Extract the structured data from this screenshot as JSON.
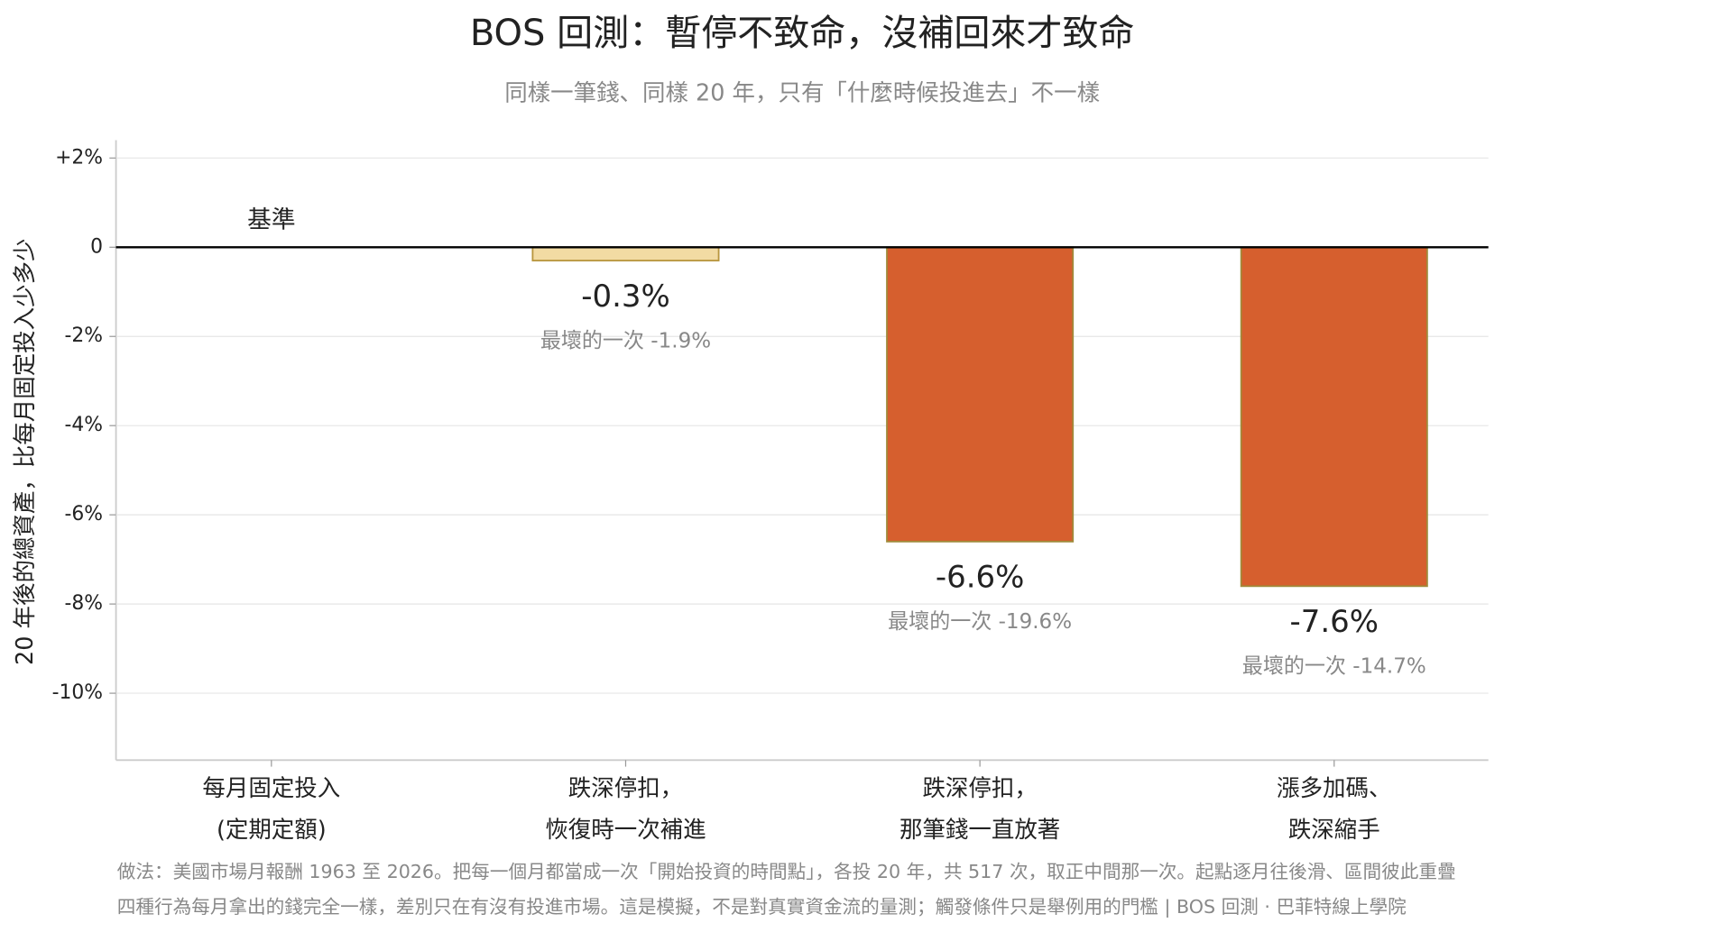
{
  "chart_data": {
    "type": "bar",
    "title": "BOS 回測：暫停不致命，沒補回來才致命",
    "subtitle": "同樣一筆錢、同樣 20 年，只有「什麼時候投進去」不一樣",
    "y_label": "20 年後的總資產，比每月固定投入少多少",
    "categories": [
      "每月固定投入\n(定期定額)",
      "跌深停扣，\n恢復時一次補進",
      "跌深停扣，\n那筆錢一直放著",
      "漲多加碼、\n跌深縮手"
    ],
    "values": [
      0,
      -0.3,
      -6.6,
      -7.6
    ],
    "value_labels": [
      "基準",
      "-0.3%",
      "-6.6%",
      "-7.6%"
    ],
    "worst_labels": [
      null,
      "最壞的一次 -1.9%",
      "最壞的一次 -19.6%",
      "最壞的一次 -14.7%"
    ],
    "colors": [
      "#d65f2e",
      "#f2dba3",
      "#d65f2e",
      "#d65f2e"
    ],
    "ylim": [
      -11.5,
      2.4
    ],
    "yticks": [
      {
        "value": 2,
        "label": "+2%"
      },
      0,
      {
        "value": -2,
        "label": "-2%"
      },
      {
        "value": -4,
        "label": "-4%"
      },
      {
        "value": -6,
        "label": "-6%"
      },
      {
        "value": -8,
        "label": "-8%"
      },
      {
        "value": -10,
        "label": "-10%"
      }
    ],
    "grid": true,
    "notes": [
      "做法：美國市場月報酬 1963 至 2026。把每一個月都當成一次「開始投資的時間點」，各投 20 年，共 517 次，取正中間那一次。起點逐月往後滑、區間彼此重疊",
      "四種行為每月拿出的錢完全一樣，差別只在有沒有投進市場。這是模擬，不是對真實資金流的量測；觸發條件只是舉例用的門檻 | BOS 回測 ·  巴菲特線上學院"
    ]
  }
}
